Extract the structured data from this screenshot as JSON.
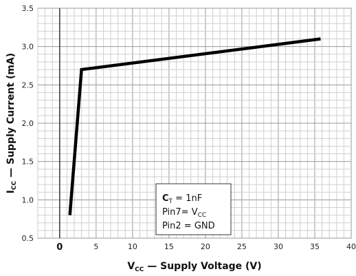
{
  "chart_data": {
    "type": "line",
    "xlabel_main": "V",
    "xlabel_sub": "CC",
    "xlabel_rest": " — Supply Voltage (V)",
    "ylabel_main": "I",
    "ylabel_sub": "CC",
    "ylabel_rest": " — Supply Current (mA)",
    "xlim": [
      -3,
      40
    ],
    "ylim": [
      0.5,
      3.5
    ],
    "x_ticks": [
      0,
      5,
      10,
      15,
      20,
      25,
      30,
      35,
      40
    ],
    "y_ticks": [
      0.5,
      1.0,
      1.5,
      2.0,
      2.5,
      3.0,
      3.5
    ],
    "x_tick_labels": [
      "0",
      "5",
      "10",
      "15",
      "20",
      "25",
      "30",
      "35",
      "40"
    ],
    "y_tick_labels": [
      "0.5",
      "1.0",
      "1.5",
      "2.0",
      "2.5",
      "3.0",
      "3.5"
    ],
    "grid": true,
    "series": [
      {
        "x": [
          1.4,
          3.0,
          35.8
        ],
        "y": [
          0.8,
          2.7,
          3.1
        ],
        "color": "#000000"
      }
    ],
    "annotation": {
      "line1_main": "C",
      "line1_sub": "T",
      "line1_rest": " = 1nF",
      "line2_main": "Pin7= V",
      "line2_sub": "CC",
      "line3": "Pin2 = GND"
    }
  }
}
